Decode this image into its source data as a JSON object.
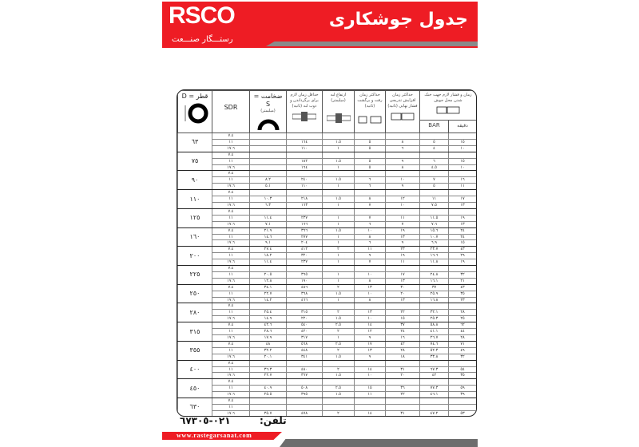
{
  "header": {
    "logo_text": "RSCO",
    "logo_subtitle": "رستـــگار صنـــعت",
    "title": "جدول جوشکاری",
    "brand_color": "#ee1c24"
  },
  "table": {
    "headers": {
      "diameter": "قطر = D",
      "sdr": "SDR",
      "thickness": "ضخامت = S",
      "thickness_unit": "(میلیمتر)",
      "melt_time": "حداقل زمان لازم برای برگرداندن و ذوب لبه (ثانیه)",
      "bead_height": "ارتفاع لبه (میلیمتر)",
      "changeover": "حداکثر زمان رفت و برگشت (ثانیه)",
      "buildup": "حداکثر زمان افزایش تدریجی فشار نهایی (ثانیه)",
      "cooling": "زمان و فشار لازم جهت خنک شدن محل جوش",
      "bar": "BAR",
      "minute": "دقیقه"
    },
    "groups": [
      {
        "d": "٦٣",
        "rows": [
          [
            "٧.٤",
            "",
            "",
            "",
            "",
            "",
            "",
            ""
          ],
          [
            "١١",
            "",
            "١٦٤",
            "١.٥",
            "٥",
            "٨",
            "٥",
            "١٥"
          ],
          [
            "١٧.٦",
            "",
            "١١٠",
            "١",
            "٥",
            "٦",
            "٤",
            "١٠"
          ]
        ]
      },
      {
        "d": "٧٥",
        "rows": [
          [
            "٧.٤",
            "",
            "",
            "",
            "",
            "",
            "",
            ""
          ],
          [
            "١١",
            "",
            "١٨٢",
            "١.٥",
            "٥",
            "٩",
            "٦",
            "١٥"
          ],
          [
            "١٧.٦",
            "",
            "١٦٤",
            "١",
            "٥",
            "٨",
            "٤.٥",
            "١٠"
          ]
        ]
      },
      {
        "d": "٩٠",
        "rows": [
          [
            "٧.٤",
            "",
            "",
            "",
            "",
            "",
            "",
            ""
          ],
          [
            "١١",
            "٨.٢",
            "٢٤٠",
            "١.٥",
            "٦",
            "١٠",
            "٧",
            "١٦"
          ],
          [
            "١٧.٦",
            "٥.١",
            "١١٠",
            "١",
            "٦",
            "٩",
            "٥",
            "١١"
          ]
        ]
      },
      {
        "d": "١١٠",
        "rows": [
          [
            "٧.٤",
            "",
            "",
            "",
            "",
            "",
            "",
            ""
          ],
          [
            "١١",
            "١٠.٣",
            "٢١٨",
            "١.٥",
            "٨",
            "١٢",
            "١١",
            "١٧"
          ],
          [
            "١٧.٦",
            "٦.٣",
            "١٦٣",
            "١",
            "٧",
            "١٠",
            "٧.٥",
            "١٣"
          ]
        ]
      },
      {
        "d": "١٢٥",
        "rows": [
          [
            "٧.٤",
            "",
            "",
            "",
            "",
            "",
            "",
            ""
          ],
          [
            "١١",
            "١١.٤",
            "٢٣٧",
            "١",
            "٧",
            "١١",
            "١١.٥",
            "١٩"
          ],
          [
            "١٧.٦",
            "٧.١",
            "١٦٦",
            "١",
            "٦",
            "٧",
            "٧.٦",
            "١٣"
          ]
        ]
      },
      {
        "d": "١٦٠",
        "rows": [
          [
            "٧.٤",
            "٢١.٩",
            "٣٦٦",
            "١.٥",
            "١٠",
            "١٩",
            "١٥.٦",
            "٢٤"
          ],
          [
            "١١",
            "١٤.٦",
            "٢٧٧",
            "١",
            "٨",
            "١٣",
            "١٠.٧",
            "٢٤"
          ],
          [
            "١٧.٦",
            "٩.١",
            "٢٠٤",
            "١",
            "٦",
            "٩",
            "٦.٩",
            "١٥"
          ]
        ]
      },
      {
        "d": "٢٠٠",
        "rows": [
          [
            "٧.٤",
            "٢٧.٤",
            "٤١٢",
            "٢",
            "١١",
            "٢٣",
            "٢٣.٧",
            "٤٣"
          ],
          [
            "١١",
            "١٨.٢",
            "٣٢٠",
            "١",
            "٩",
            "١٩",
            "١٦.٦",
            "٢٩"
          ],
          [
            "١٧.٦",
            "١١.٤",
            "٢٣٧",
            "١",
            "٧",
            "١١",
            "١١.٨",
            "١٩"
          ]
        ]
      },
      {
        "d": "٢٢٥",
        "rows": [
          [
            "٧.٤",
            "",
            "",
            "",
            "",
            "",
            "",
            ""
          ],
          [
            "١١",
            "٢٠.٥",
            "٣٦٥",
            "١",
            "١٠",
            "١٧",
            "٢٤.٨",
            "٣٢"
          ],
          [
            "١٧.٦",
            "١٢.٨",
            "١٩٠",
            "١",
            "٨",
            "١٣",
            "١٦.١",
            "٢١"
          ]
        ]
      },
      {
        "d": "٢٥٠",
        "rows": [
          [
            "٧.٤",
            "٣٤.١",
            "٤٨٦",
            "٢",
            "١٣",
            "٣٠",
            "٣٧",
            "٤٣"
          ],
          [
            "١١",
            "٢٢.٧",
            "٣٦٨",
            "١.٥",
            "١٠",
            "٢٠",
            "٢٥.٩",
            "٣٥"
          ],
          [
            "١٧.٦",
            "١٤.٢",
            "٤٦٦",
            "١",
            "٨",
            "١٣",
            "١٦.٨",
            "٢٣"
          ]
        ]
      },
      {
        "d": "٢٨٠",
        "rows": [
          [
            "٧.٤",
            "",
            "",
            "",
            "",
            "",
            "",
            ""
          ],
          [
            "١١",
            "٢٥.٤",
            "٣١٥",
            "٢",
            "١٣",
            "٢٢",
            "٣٢.١",
            "٢٨"
          ],
          [
            "١٧.٦",
            "١٤.٩",
            "٢٢٠",
            "١.٥",
            "١٠",
            "١٥",
            "٢٥.٣",
            "٢٥"
          ]
        ]
      },
      {
        "d": "٣١٥",
        "rows": [
          [
            "٧.٤",
            "٤٢.٦",
            "٥٤٠",
            "٢.٥",
            "١٤",
            "٣٧",
            "٥٨.٨",
            "٦٢"
          ],
          [
            "١١",
            "٢٨.٦",
            "٤٢٠",
            "٢",
            "١٢",
            "٢٤",
            "٤١.١",
            "٤٤"
          ],
          [
            "١٧.٦",
            "١٧.٩",
            "٣١٧",
            "١",
            "٩",
            "١٦",
            "٢٦.٧",
            "٢٨"
          ]
        ]
      },
      {
        "d": "٣٥٥",
        "rows": [
          [
            "٧.٤",
            "٤٨",
            "٥٦٨",
            "٢.٥",
            "١٧",
            "٤٢",
            "٧٤.٦",
            "٧١"
          ],
          [
            "١١",
            "٣٢.٢",
            "٤٤٨",
            "٢",
            "١٣",
            "٢٨",
            "٥٢.٣",
            "٤٩"
          ],
          [
            "١٧.٦",
            "٢٠.١",
            "٣٤١",
            "١.٥",
            "٩",
            "١٨",
            "٣٣.٨",
            "٣٢"
          ]
        ]
      },
      {
        "d": "٤٠٠",
        "rows": [
          [
            "٧.٤",
            "",
            "",
            "",
            "",
            "",
            "",
            ""
          ],
          [
            "١١",
            "٣٦.٣",
            "٤٨٠",
            "٢",
            "١٤",
            "٣١",
            "٦٧.٣",
            "٥٤"
          ],
          [
            "١٧.٦",
            "٢٢.٧",
            "٣٦٧",
            "١.٥",
            "١٠",
            "٢٠",
            "٤٢",
            "٣٥"
          ]
        ]
      },
      {
        "d": "٤٥٠",
        "rows": [
          [
            "٧.٤",
            "",
            "",
            "",
            "",
            "",
            "",
            ""
          ],
          [
            "١١",
            "٤٠.٩",
            "٥٠٨",
            "٢.٥",
            "١٥",
            "٣٦",
            "٧٧.٣",
            "٥٩"
          ],
          [
            "١٧.٦",
            "٢٥.٥",
            "٣٩٥",
            "١.٥",
            "١١",
            "٢٢",
            "٤٦.١",
            "٣٩"
          ]
        ]
      },
      {
        "d": "٦٣٠",
        "rows": [
          [
            "٧.٤",
            "",
            "",
            "",
            "",
            "",
            "",
            ""
          ],
          [
            "١١",
            "",
            "",
            "",
            "",
            "",
            "",
            ""
          ],
          [
            "١٧.٦",
            "٣٥.٧",
            "٤٧٨",
            "٢",
            "١٤",
            "٣١",
            "٤٧.٢",
            "٥٣"
          ]
        ]
      }
    ]
  },
  "footer": {
    "phone_label": "تلفن:",
    "phone": "٠٢١-٦٧٣٠٥",
    "website": "www.rastegarsanat.com"
  }
}
